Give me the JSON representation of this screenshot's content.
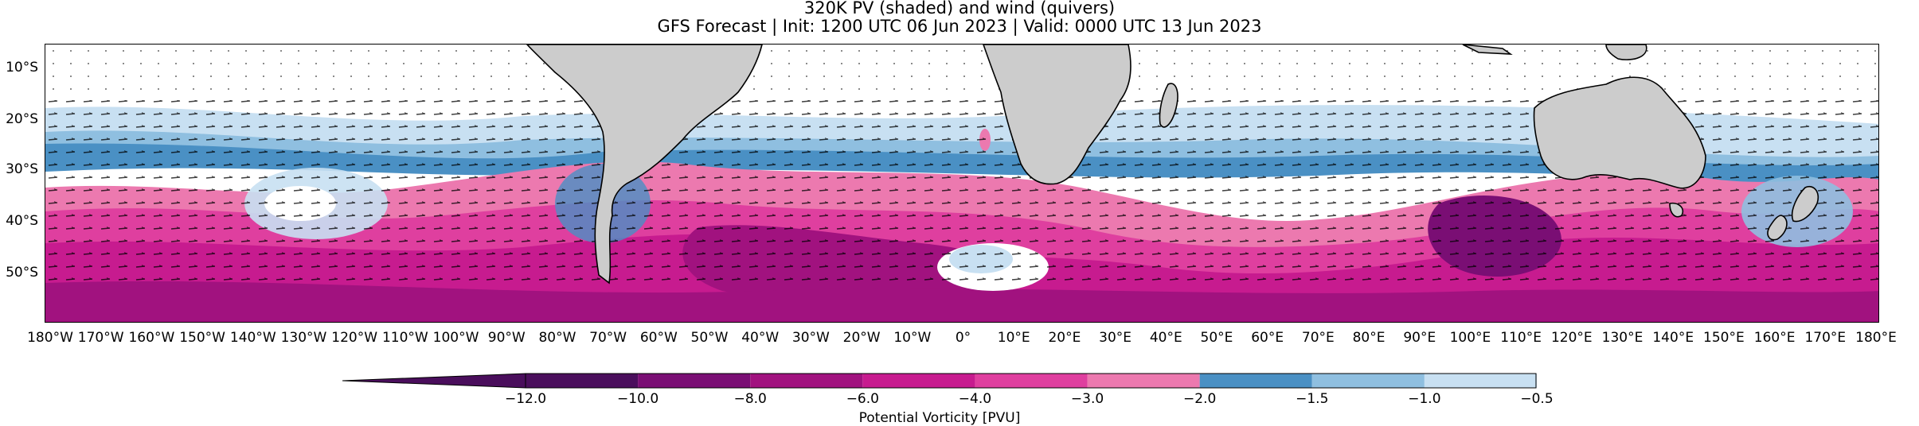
{
  "title": {
    "line1": "320K PV (shaded) and wind (quivers)",
    "line2": "GFS Forecast | Init: 1200 UTC 06 Jun 2023 | Valid: 0000 UTC 13 Jun 2023"
  },
  "lat_labels": [
    "10°S",
    "20°S",
    "30°S",
    "40°S",
    "50°S"
  ],
  "lon_labels": [
    "180°W",
    "170°W",
    "160°W",
    "150°W",
    "140°W",
    "130°W",
    "120°W",
    "110°W",
    "100°W",
    "90°W",
    "80°W",
    "70°W",
    "60°W",
    "50°W",
    "40°W",
    "30°W",
    "20°W",
    "10°W",
    "0°",
    "10°E",
    "20°E",
    "30°E",
    "40°E",
    "50°E",
    "60°E",
    "70°E",
    "80°E",
    "90°E",
    "100°E",
    "110°E",
    "120°E",
    "130°E",
    "140°E",
    "150°E",
    "160°E",
    "170°E",
    "180°E"
  ],
  "map": {
    "lon_range": [
      -180,
      180
    ],
    "lat_range": [
      -60,
      -5
    ],
    "land_color": "#cccccc",
    "coastline_color": "#000000",
    "quiver_color": "#000000"
  },
  "colorbar": {
    "label": "Potential Vorticity [PVU]",
    "ticks": [
      "−12.0",
      "−10.0",
      "−8.0",
      "−6.0",
      "−4.0",
      "−3.0",
      "−2.0",
      "−1.5",
      "−1.0",
      "−0.5"
    ],
    "colors": [
      "#4a0e5c",
      "#7a0e74",
      "#a1127f",
      "#c71b8f",
      "#df3f9f",
      "#ec79af",
      "#4a90c4",
      "#8fbfe0",
      "#c8e0f2"
    ],
    "extend": "min"
  }
}
